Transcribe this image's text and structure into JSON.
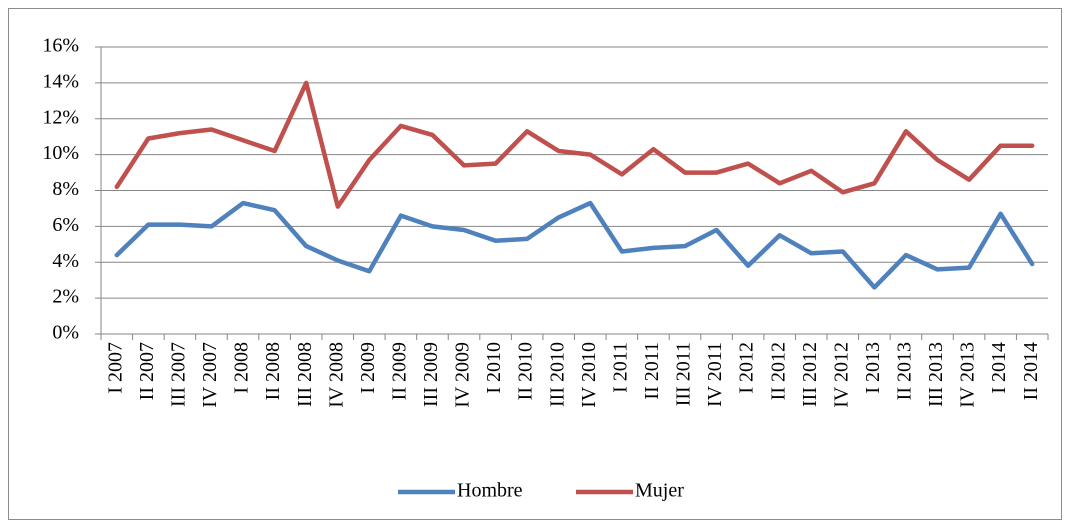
{
  "chart_data": {
    "type": "line",
    "categories": [
      "I 2007",
      "II 2007",
      "III 2007",
      "IV 2007",
      "I 2008",
      "II 2008",
      "III 2008",
      "IV 2008",
      "I 2009",
      "II 2009",
      "III 2009",
      "IV 2009",
      "I 2010",
      "II 2010",
      "III 2010",
      "IV 2010",
      "I 2011",
      "II 2011",
      "III 2011",
      "IV 2011",
      "I 2012",
      "II 2012",
      "III 2012",
      "IV 2012",
      "I 2013",
      "II 2013",
      "III 2013",
      "IV 2013",
      "I 2014",
      "II 2014"
    ],
    "series": [
      {
        "name": "Hombre",
        "color": "#4f81bd",
        "values": [
          4.4,
          6.1,
          6.1,
          6.0,
          7.3,
          6.9,
          4.9,
          4.1,
          3.5,
          6.6,
          6.0,
          5.8,
          5.2,
          5.3,
          6.5,
          7.3,
          4.6,
          4.8,
          4.9,
          5.8,
          3.8,
          5.5,
          4.5,
          4.6,
          2.6,
          4.4,
          3.6,
          3.7,
          6.7,
          3.9
        ]
      },
      {
        "name": "Mujer",
        "color": "#c0504d",
        "values": [
          8.2,
          10.9,
          11.2,
          11.4,
          10.8,
          10.2,
          14.0,
          7.1,
          9.7,
          11.6,
          11.1,
          9.4,
          9.5,
          11.3,
          10.2,
          10.0,
          8.9,
          10.3,
          9.0,
          9.0,
          9.5,
          8.4,
          9.1,
          7.9,
          8.4,
          11.3,
          9.7,
          8.6,
          10.5,
          10.5
        ]
      }
    ],
    "ylim": [
      0,
      16
    ],
    "yticks": [
      {
        "value": 0,
        "label": "0%"
      },
      {
        "value": 2,
        "label": "2%"
      },
      {
        "value": 4,
        "label": "4%"
      },
      {
        "value": 6,
        "label": "6%"
      },
      {
        "value": 8,
        "label": "8%"
      },
      {
        "value": 10,
        "label": "10%"
      },
      {
        "value": 12,
        "label": "12%"
      },
      {
        "value": 14,
        "label": "14%"
      },
      {
        "value": 16,
        "label": "16%"
      }
    ],
    "grid": true,
    "legend": "bottom"
  }
}
